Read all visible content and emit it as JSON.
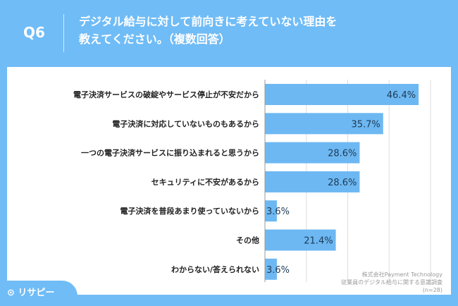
{
  "header": {
    "question": "Q6",
    "title_line1": "デジタル給与に対して前向きに考えていない理由を",
    "title_line2": "教えてください。（複数回答）"
  },
  "source": {
    "line1": "株式会社Payment Technology",
    "line2": "従業員のデジタル給与に関する意識調査",
    "line3": "(n=28)"
  },
  "logo": {
    "text": "リサピー"
  },
  "colors": {
    "background": "#70bcf6",
    "bar": "#6db8f2"
  },
  "chart_data": {
    "type": "bar",
    "orientation": "horizontal",
    "unit": "%",
    "categories": [
      "電子決済サービスの破綻やサービス停止が不安だから",
      "電子決済に対応していないものもあるから",
      "一つの電子決済サービスに振り込まれると思うから",
      "セキュリティに不安があるから",
      "電子決済を普段あまり使っていないから",
      "その他",
      "わからない/答えられない"
    ],
    "values": [
      46.4,
      35.7,
      28.6,
      28.6,
      3.6,
      21.4,
      3.6
    ],
    "labels": [
      "46.4%",
      "35.7%",
      "28.6%",
      "28.6%",
      "3.6%",
      "21.4%",
      "3.6%"
    ],
    "xlim": [
      0,
      50
    ],
    "grid": true
  }
}
